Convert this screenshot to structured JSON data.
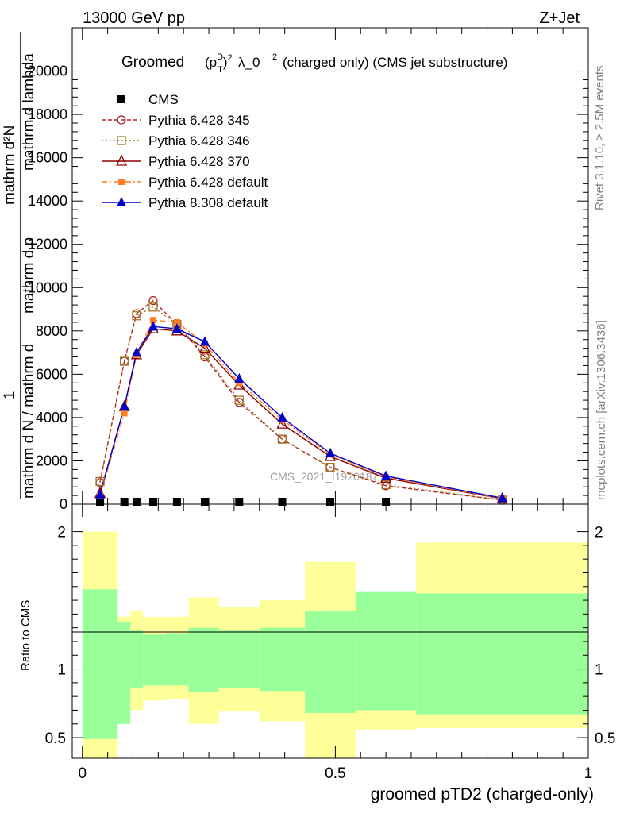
{
  "header": {
    "left": "13000 GeV pp",
    "right": "Z+Jet",
    "side_top": "Rivet 3.1.10, ≥ 2.5M events",
    "side_bottom": "mcplots.cern.ch [arXiv:1306.3436]"
  },
  "plot_title": {
    "prefix": "Groomed",
    "mid": "λ_0",
    "suffix": "(charged only) (CMS jet substructure)"
  },
  "watermark": "CMS_2021_I1920187",
  "ylabel_main": {
    "line1": "mathrm d",
    "line2": "mathrm d p",
    "line3": "mathrm d N / mathrm d",
    "one": "1",
    "n_top": "mathrm d²N",
    "lambda_top": "mathrm d lambda"
  },
  "ratio_ylabel": "Ratio to CMS",
  "xlabel": "groomed pTD2 (charged-only)",
  "colors": {
    "p345": "#b22222",
    "p346": "#a0782a",
    "p370": "#8b0000",
    "pdef": "#ff7f24",
    "p8": "#0000cd",
    "band_inner": "#99ff99",
    "band_outer": "#ffff99"
  },
  "legend": [
    {
      "key": "cms",
      "label": "CMS"
    },
    {
      "key": "p345",
      "label": "Pythia 6.428 345"
    },
    {
      "key": "p346",
      "label": "Pythia 6.428 346"
    },
    {
      "key": "p370",
      "label": "Pythia 6.428 370"
    },
    {
      "key": "pdef",
      "label": "Pythia 6.428 default"
    },
    {
      "key": "p8",
      "label": "Pythia 8.308 default"
    }
  ],
  "chart_data": {
    "type": "line",
    "xlim": [
      -0.02,
      1.0
    ],
    "ylim": [
      0,
      22000
    ],
    "yticks": [
      0,
      2000,
      4000,
      6000,
      8000,
      10000,
      12000,
      14000,
      16000,
      18000,
      20000
    ],
    "ytick_labels": [
      "0",
      "2000",
      "4000",
      "6000",
      "8000",
      "10000",
      "12000",
      "14000",
      "16000",
      "18000",
      "20000"
    ],
    "x": [
      0.035,
      0.083,
      0.107,
      0.14,
      0.187,
      0.242,
      0.31,
      0.395,
      0.49,
      0.6,
      0.83
    ],
    "series": [
      {
        "key": "cms",
        "name": "CMS",
        "values": [
          60,
          60,
          60,
          60,
          60,
          60,
          60,
          60,
          60,
          60,
          0
        ]
      },
      {
        "key": "p345",
        "name": "Pythia 6.428 345",
        "values": [
          1000,
          6600,
          8800,
          9400,
          8300,
          6800,
          4700,
          3000,
          1700,
          850,
          180
        ]
      },
      {
        "key": "p346",
        "name": "Pythia 6.428 346",
        "values": [
          1050,
          6600,
          8700,
          9100,
          8300,
          6900,
          4800,
          3000,
          1700,
          900,
          190
        ]
      },
      {
        "key": "p370",
        "name": "Pythia 6.428 370",
        "values": [
          500,
          4500,
          6900,
          8100,
          8000,
          7200,
          5500,
          3700,
          2200,
          1200,
          250
        ]
      },
      {
        "key": "pdef",
        "name": "Pythia 6.428 default",
        "values": [
          400,
          4200,
          6900,
          8500,
          8400,
          7400,
          5600,
          3900,
          2300,
          1250,
          260
        ]
      },
      {
        "key": "p8",
        "name": "Pythia 8.308 default",
        "values": [
          450,
          4500,
          7000,
          8200,
          8100,
          7500,
          5800,
          4000,
          2350,
          1300,
          280
        ]
      }
    ],
    "ratio": {
      "ylim": [
        0.35,
        2.2
      ],
      "yticks": [
        0.5,
        1,
        2
      ],
      "ytick_labels": [
        "0.5",
        "1",
        "2"
      ],
      "xticks": [
        0,
        0.5,
        1
      ],
      "xtick_labels": [
        "0",
        "0.5",
        "1"
      ],
      "bins": [
        0,
        0.07,
        0.095,
        0.12,
        0.165,
        0.21,
        0.27,
        0.35,
        0.44,
        0.54,
        0.66,
        1.0
      ],
      "inner_lo": [
        0.49,
        0.6,
        0.86,
        0.88,
        0.88,
        0.83,
        0.86,
        0.84,
        0.68,
        0.7,
        0.67
      ],
      "inner_hi": [
        1.58,
        1.34,
        1.28,
        1.25,
        1.26,
        1.3,
        1.28,
        1.3,
        1.42,
        1.56,
        1.55
      ],
      "outer_lo": [
        0.35,
        0.78,
        0.7,
        0.77,
        0.78,
        0.6,
        0.69,
        0.62,
        0.35,
        0.56,
        0.57
      ],
      "outer_hi": [
        2.0,
        1.38,
        1.42,
        1.38,
        1.38,
        1.52,
        1.45,
        1.5,
        1.78,
        1.48,
        1.92
      ]
    }
  }
}
